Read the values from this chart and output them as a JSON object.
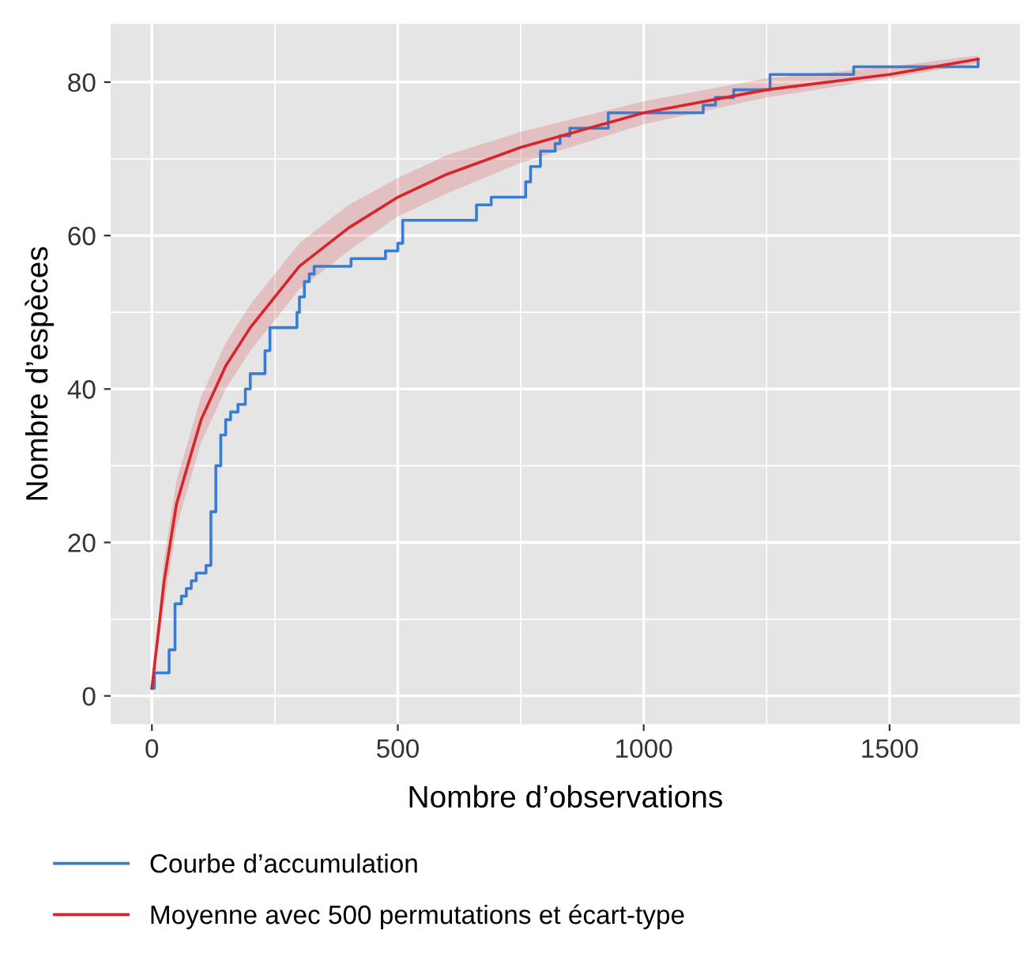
{
  "chart_data": {
    "type": "line",
    "xlabel": "Nombre d’observations",
    "ylabel": "Nombre d’espèces",
    "xlim": [
      -84,
      1765
    ],
    "ylim": [
      -3.7,
      87.6
    ],
    "xticks": [
      0,
      500,
      1000,
      1500
    ],
    "yticks": [
      0,
      20,
      40,
      60,
      80
    ],
    "grid": true,
    "legend": "bottom",
    "series": [
      {
        "name": "Courbe d’accumulation",
        "type": "step",
        "color": "#3a7dd0",
        "x": [
          0,
          5,
          35,
          47,
          60,
          70,
          80,
          90,
          110,
          120,
          130,
          140,
          150,
          160,
          175,
          190,
          200,
          230,
          240,
          295,
          300,
          310,
          320,
          330,
          405,
          475,
          500,
          510,
          660,
          690,
          760,
          770,
          790,
          820,
          830,
          850,
          928,
          1121,
          1146,
          1183,
          1257,
          1427,
          1670,
          1680
        ],
        "values": [
          1,
          3,
          6,
          12,
          13,
          14,
          15,
          16,
          17,
          24,
          30,
          34,
          36,
          37,
          38,
          40,
          42,
          45,
          48,
          50,
          52,
          54,
          55,
          56,
          57,
          58,
          59,
          62,
          64,
          65,
          67,
          69,
          71,
          72,
          73,
          74,
          76,
          77,
          78,
          79,
          81,
          82,
          82,
          83
        ]
      },
      {
        "name": "Moyenne avec 500 permutations et écart-type",
        "color": "#d7262b",
        "x": [
          0,
          25,
          50,
          100,
          150,
          200,
          300,
          400,
          500,
          600,
          750,
          1000,
          1250,
          1500,
          1680
        ],
        "values": [
          1,
          15,
          25,
          36,
          43,
          48,
          56,
          61,
          65,
          68,
          71.5,
          76,
          79,
          81,
          83
        ],
        "lower": [
          1,
          12,
          22,
          33,
          40,
          45,
          53,
          58,
          62.5,
          65.5,
          69.5,
          74.5,
          78,
          80.5,
          82.5
        ],
        "upper": [
          1,
          18,
          28,
          39,
          46,
          51,
          59,
          64,
          67.5,
          70.5,
          73.5,
          77.5,
          80.5,
          82,
          83.5
        ]
      }
    ]
  }
}
